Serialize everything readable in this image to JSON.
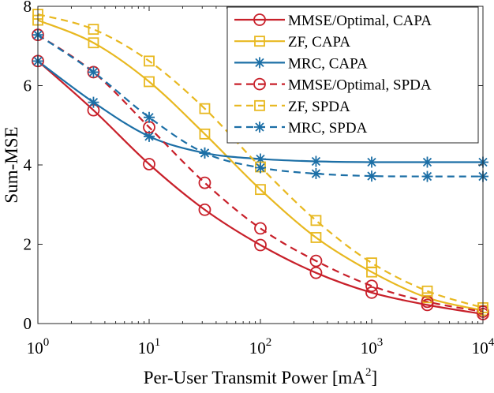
{
  "chart_data": {
    "type": "line",
    "title": "",
    "xlabel": "Per-User Transmit Power [mA",
    "xlabel_superscript": "2",
    "xlabel_suffix": "]",
    "ylabel": "Sum-MSE",
    "xscale": "log",
    "xlim": [
      1,
      10000
    ],
    "ylim": [
      0,
      8
    ],
    "grid": false,
    "legend_position": "top-right",
    "x_ticks": [
      {
        "base": "10",
        "exp": "0",
        "value": 1
      },
      {
        "base": "10",
        "exp": "1",
        "value": 10
      },
      {
        "base": "10",
        "exp": "2",
        "value": 100
      },
      {
        "base": "10",
        "exp": "3",
        "value": 1000
      },
      {
        "base": "10",
        "exp": "4",
        "value": 10000
      }
    ],
    "y_ticks": [
      {
        "label": "0",
        "value": 0
      },
      {
        "label": "2",
        "value": 2
      },
      {
        "label": "4",
        "value": 4
      },
      {
        "label": "6",
        "value": 6
      },
      {
        "label": "8",
        "value": 8
      }
    ],
    "marker_x": [
      1,
      3.16,
      10,
      31.6,
      100,
      316,
      1000,
      3162,
      10000
    ],
    "series": [
      {
        "name": "MMSE/Optimal, CAPA",
        "color": "#c8202a",
        "dash": "solid",
        "marker": "circle",
        "values": [
          6.62,
          5.38,
          4.02,
          2.87,
          1.98,
          1.28,
          0.78,
          0.47,
          0.24
        ]
      },
      {
        "name": "ZF, CAPA",
        "color": "#e8b820",
        "dash": "solid",
        "marker": "square",
        "values": [
          7.65,
          7.08,
          6.1,
          4.78,
          3.38,
          2.17,
          1.3,
          0.65,
          0.33
        ]
      },
      {
        "name": "MRC, CAPA",
        "color": "#1c6fa6",
        "dash": "solid",
        "marker": "asterisk",
        "values": [
          6.62,
          5.58,
          4.72,
          4.3,
          4.15,
          4.09,
          4.07,
          4.07,
          4.07
        ]
      },
      {
        "name": "MMSE/Optimal, SPDA",
        "color": "#c8202a",
        "dash": "dashed",
        "marker": "circle",
        "values": [
          7.28,
          6.34,
          4.95,
          3.55,
          2.4,
          1.58,
          0.95,
          0.55,
          0.3
        ]
      },
      {
        "name": "ZF, SPDA",
        "color": "#e8b820",
        "dash": "dashed",
        "marker": "square",
        "values": [
          7.8,
          7.42,
          6.62,
          5.42,
          3.95,
          2.6,
          1.53,
          0.82,
          0.4
        ]
      },
      {
        "name": "MRC, SPDA",
        "color": "#1c6fa6",
        "dash": "dashed",
        "marker": "asterisk",
        "values": [
          7.28,
          6.34,
          5.2,
          4.3,
          3.93,
          3.78,
          3.72,
          3.71,
          3.71
        ]
      }
    ]
  }
}
